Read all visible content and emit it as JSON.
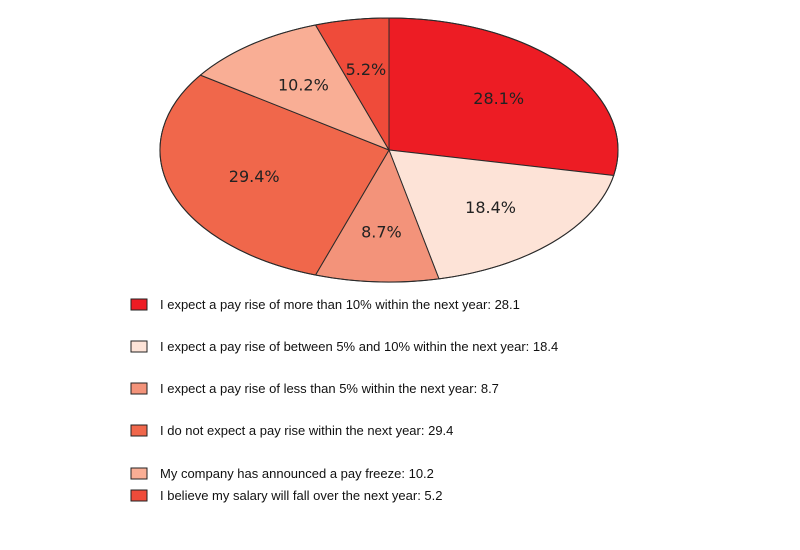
{
  "chart_data": {
    "type": "pie",
    "title": "",
    "slices": [
      {
        "label": "I expect a pay rise of more than 10% within the next year",
        "value": 28.1,
        "display": "28.1%",
        "color": "#ed1c24"
      },
      {
        "label": "I expect a pay rise of between 5% and 10% within the next year",
        "value": 18.4,
        "display": "18.4%",
        "color": "#fde3d7"
      },
      {
        "label": "I expect a pay rise of less than 5% within the next year",
        "value": 8.7,
        "display": "8.7%",
        "color": "#f3937a"
      },
      {
        "label": "I do not expect a pay rise within the next year",
        "value": 29.4,
        "display": "29.4%",
        "color": "#f0674b"
      },
      {
        "label": "My company has announced a pay freeze",
        "value": 10.2,
        "display": "10.2%",
        "color": "#f9ae95"
      },
      {
        "label": "I believe my salary will fall over the next year",
        "value": 5.2,
        "display": "5.2%",
        "color": "#ef4b3a"
      }
    ],
    "legend": [
      "I expect a pay rise of more than 10% within the next year: 28.1",
      "I expect a pay rise of between 5% and 10% within the next year: 18.4",
      "I expect a pay rise of less than 5% within the next year: 8.7",
      "I do not expect a pay rise within the next year: 29.4",
      "My company has announced a pay freeze: 10.2",
      "I believe my salary will fall over the next year: 5.2"
    ],
    "legend_placement": "bottom",
    "start": "top, clockwise"
  }
}
